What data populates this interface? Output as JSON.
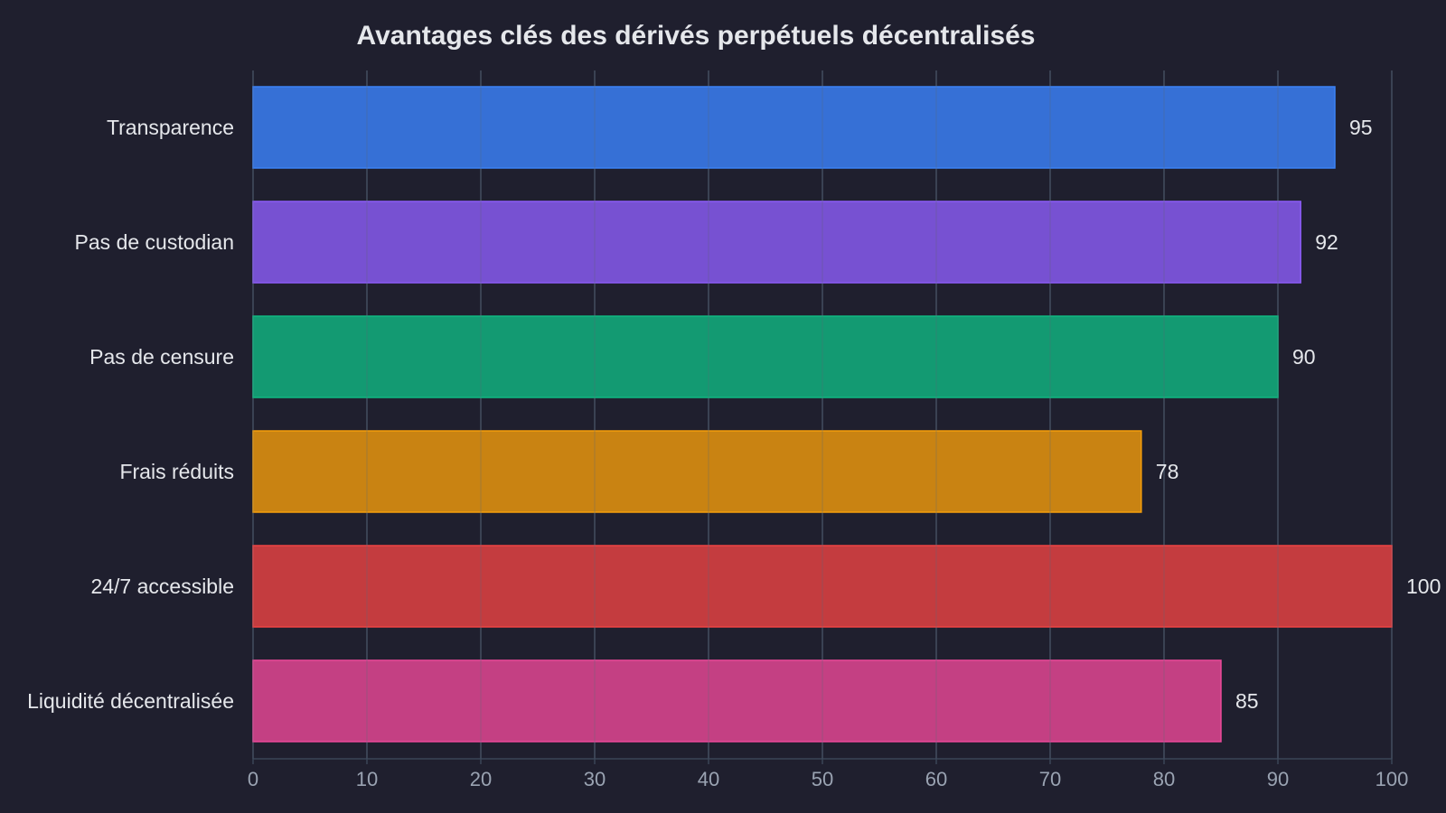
{
  "chart_data": {
    "type": "bar",
    "orientation": "horizontal",
    "title": "Avantages clés des dérivés perpétuels décentralisés",
    "xlabel": "",
    "ylabel": "",
    "categories": [
      "Transparence",
      "Pas de custodian",
      "Pas de censure",
      "Frais réduits",
      "24/7 accessible",
      "Liquidité décentralisée"
    ],
    "values": [
      95,
      92,
      90,
      78,
      100,
      85
    ],
    "value_labels": [
      "95",
      "92",
      "90",
      "78",
      "100",
      "85"
    ],
    "colors": [
      "#3670d6",
      "#7751d2",
      "#139a72",
      "#c98312",
      "#c43c3f",
      "#c44083"
    ],
    "edge_colors": [
      "#3b82f6",
      "#8b5cf6",
      "#10b981",
      "#f59e0b",
      "#ef4444",
      "#ec4899"
    ],
    "xlim": [
      0,
      100
    ],
    "xticks": [
      0,
      10,
      20,
      30,
      40,
      50,
      60,
      70,
      80,
      90,
      100
    ],
    "xtick_labels": [
      "0",
      "10",
      "20",
      "30",
      "40",
      "50",
      "60",
      "70",
      "80",
      "90",
      "100"
    ],
    "grid": "vertical",
    "legend": "none"
  }
}
